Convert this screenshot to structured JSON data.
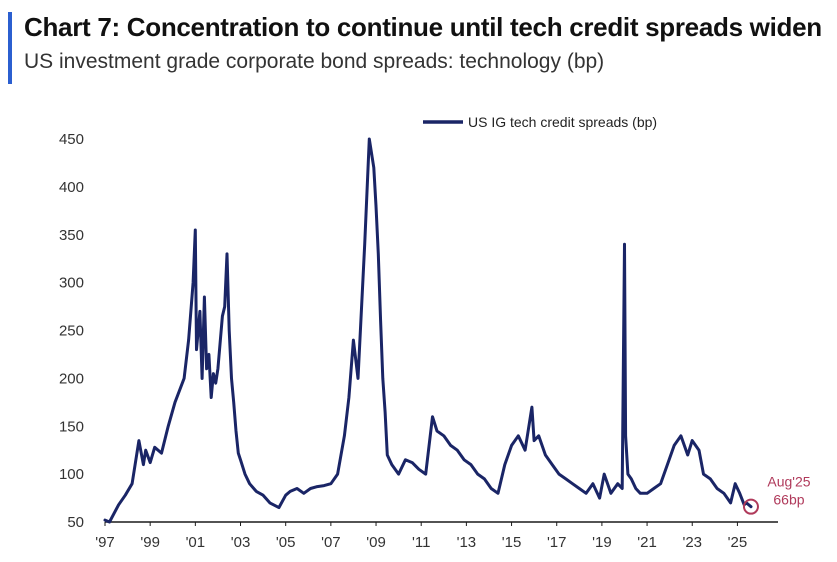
{
  "chart_data": {
    "type": "line",
    "title": "Chart 7: Concentration to continue until tech credit spreads widen",
    "subtitle": "US investment grade corporate bond spreads: technology (bp)",
    "xlabel": "",
    "ylabel": "",
    "xlim": [
      1997,
      2026
    ],
    "ylim": [
      50,
      450
    ],
    "y_ticks": [
      50,
      100,
      150,
      200,
      250,
      300,
      350,
      400,
      450
    ],
    "x_ticks": [
      1997,
      1999,
      2001,
      2003,
      2005,
      2007,
      2009,
      2011,
      2013,
      2015,
      2017,
      2019,
      2021,
      2023,
      2025
    ],
    "x_tick_labels": [
      "'97",
      "'99",
      "'01",
      "'03",
      "'05",
      "'07",
      "'09",
      "'11",
      "'13",
      "'15",
      "'17",
      "'19",
      "'21",
      "'23",
      "'25"
    ],
    "legend": "top-center",
    "colors": {
      "line": "#1a2566",
      "annotation": "#b03a5b",
      "accent": "#2b5fd0"
    },
    "series": [
      {
        "name": "US IG tech credit spreads (bp)",
        "x": [
          1997.0,
          1997.2,
          1997.6,
          1997.9,
          1998.2,
          1998.5,
          1998.7,
          1998.8,
          1999.0,
          1999.2,
          1999.5,
          1999.8,
          2000.1,
          2000.5,
          2000.7,
          2000.9,
          2001.0,
          2001.05,
          2001.2,
          2001.3,
          2001.4,
          2001.5,
          2001.6,
          2001.7,
          2001.8,
          2001.9,
          2002.0,
          2002.2,
          2002.3,
          2002.4,
          2002.5,
          2002.6,
          2002.7,
          2002.8,
          2002.9,
          2003.0,
          2003.2,
          2003.4,
          2003.7,
          2004.0,
          2004.3,
          2004.7,
          2005.0,
          2005.2,
          2005.5,
          2005.8,
          2006.1,
          2006.4,
          2006.7,
          2007.0,
          2007.3,
          2007.6,
          2007.8,
          2008.0,
          2008.2,
          2008.5,
          2008.7,
          2008.9,
          2009.0,
          2009.1,
          2009.2,
          2009.3,
          2009.4,
          2009.5,
          2009.7,
          2010.0,
          2010.3,
          2010.6,
          2010.9,
          2011.2,
          2011.5,
          2011.7,
          2012.0,
          2012.3,
          2012.6,
          2012.9,
          2013.2,
          2013.5,
          2013.8,
          2014.1,
          2014.4,
          2014.7,
          2015.0,
          2015.3,
          2015.6,
          2015.9,
          2016.0,
          2016.2,
          2016.5,
          2016.8,
          2017.1,
          2017.4,
          2017.7,
          2018.0,
          2018.3,
          2018.6,
          2018.9,
          2019.1,
          2019.4,
          2019.7,
          2019.9,
          2020.0,
          2020.05,
          2020.15,
          2020.3,
          2020.5,
          2020.7,
          2021.0,
          2021.3,
          2021.6,
          2021.9,
          2022.2,
          2022.5,
          2022.8,
          2023.0,
          2023.3,
          2023.5,
          2023.8,
          2024.1,
          2024.4,
          2024.7,
          2024.9,
          2025.1,
          2025.3,
          2025.4,
          2025.6
        ],
        "values": [
          52,
          50,
          68,
          78,
          90,
          135,
          110,
          125,
          112,
          128,
          122,
          150,
          175,
          200,
          240,
          300,
          355,
          230,
          270,
          200,
          285,
          210,
          225,
          180,
          205,
          195,
          210,
          265,
          275,
          330,
          250,
          200,
          175,
          145,
          122,
          115,
          100,
          90,
          82,
          78,
          70,
          65,
          78,
          82,
          85,
          80,
          85,
          87,
          88,
          90,
          100,
          140,
          180,
          240,
          200,
          340,
          450,
          420,
          380,
          330,
          260,
          200,
          165,
          120,
          110,
          100,
          115,
          112,
          105,
          100,
          160,
          145,
          140,
          130,
          125,
          115,
          110,
          100,
          95,
          85,
          80,
          110,
          130,
          140,
          125,
          170,
          135,
          140,
          120,
          110,
          100,
          95,
          90,
          85,
          80,
          90,
          75,
          100,
          80,
          90,
          85,
          340,
          140,
          100,
          95,
          85,
          80,
          80,
          85,
          90,
          110,
          130,
          140,
          120,
          135,
          125,
          100,
          95,
          85,
          80,
          70,
          90,
          80,
          68,
          70,
          66
        ]
      }
    ],
    "annotation": {
      "label_line1": "Aug'25",
      "label_line2": "66bp",
      "x": 2025.6,
      "y": 66
    }
  }
}
